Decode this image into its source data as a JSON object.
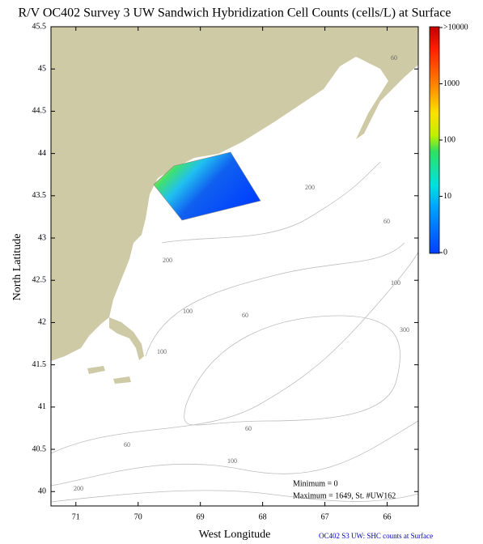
{
  "chart_data": {
    "type": "map",
    "title": "R/V OC402 Survey 3 UW Sandwich Hybridization Cell Counts (cells/L) at Surface",
    "xlabel": "West Longitude",
    "ylabel": "North Latitude",
    "xlim": [
      71.4,
      65.5
    ],
    "ylim": [
      39.83,
      45.5
    ],
    "xticks": [
      71,
      70,
      69,
      68,
      67,
      66
    ],
    "yticks": [
      40,
      40.5,
      41,
      41.5,
      42,
      42.5,
      43,
      43.5,
      44,
      44.5,
      45,
      45.5
    ],
    "colorbar_ticks": [
      0,
      10,
      100,
      1000,
      {
        "value": 10000,
        "label": ">10000"
      }
    ],
    "contour_labels": [
      60,
      200,
      60,
      200,
      100,
      60,
      100,
      300,
      100,
      60,
      60,
      100,
      200
    ],
    "annotations": [
      "Minimum = 0",
      "Maximum = 1649, St. #UW162"
    ],
    "footer": "OC402  S3 UW: SHC counts at Surface"
  }
}
